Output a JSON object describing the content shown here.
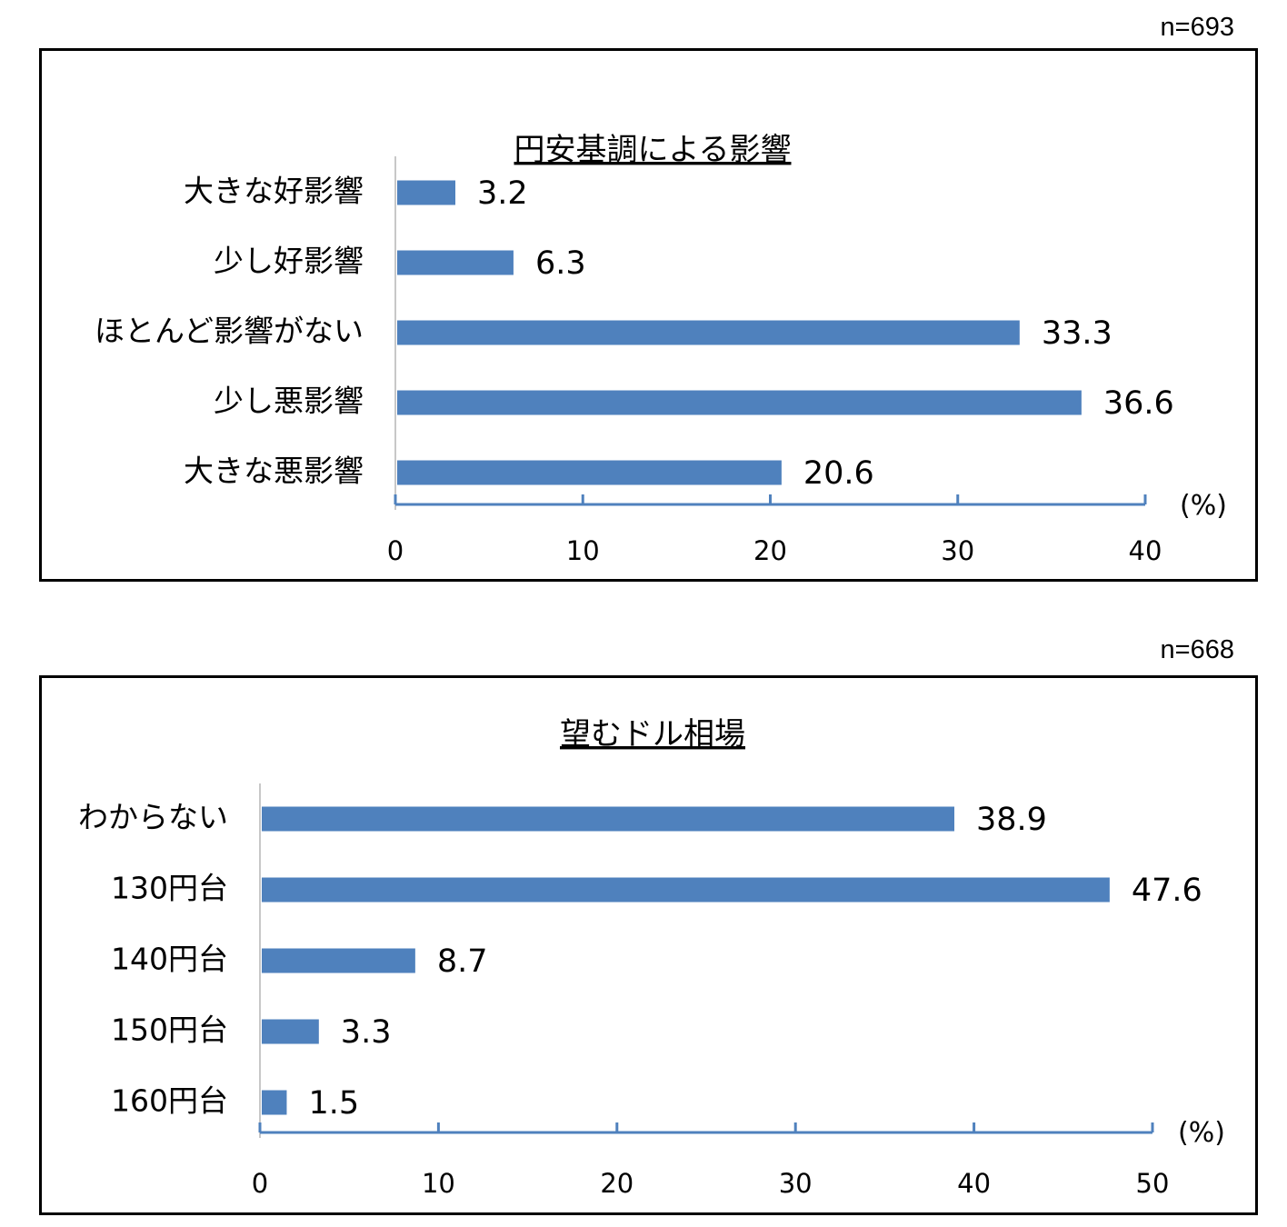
{
  "charts": [
    {
      "sample_size": "n=693",
      "title": "円安基調による影響",
      "unit": "(%)"
    },
    {
      "sample_size": "n=668",
      "title": "望むドル相場",
      "unit": "(%)"
    }
  ],
  "chart_data": [
    {
      "type": "bar",
      "orientation": "horizontal",
      "title": "円安基調による影響",
      "categories": [
        "大きな好影響",
        "少し好影響",
        "ほとんど影響がない",
        "少し悪影響",
        "大きな悪影響"
      ],
      "values": [
        3.2,
        6.3,
        33.3,
        36.6,
        20.6
      ],
      "value_labels": [
        "3.2",
        "6.3",
        "33.3",
        "36.6",
        "20.6"
      ],
      "xlim": [
        0,
        40
      ],
      "xticks": [
        "0",
        "10",
        "20",
        "30",
        "40"
      ],
      "xlabel": "(%)",
      "bar_color": "#4F81BD",
      "grid": false
    },
    {
      "type": "bar",
      "orientation": "horizontal",
      "title": "望むドル相場",
      "categories": [
        "わからない",
        "130円台",
        "140円台",
        "150円台",
        "160円台"
      ],
      "values": [
        38.9,
        47.6,
        8.7,
        3.3,
        1.5
      ],
      "value_labels": [
        "38.9",
        "47.6",
        "8.7",
        "3.3",
        "1.5"
      ],
      "xlim": [
        0,
        50
      ],
      "xticks": [
        "0",
        "10",
        "20",
        "30",
        "40",
        "50"
      ],
      "xlabel": "(%)",
      "bar_color": "#4F81BD",
      "grid": false
    }
  ]
}
